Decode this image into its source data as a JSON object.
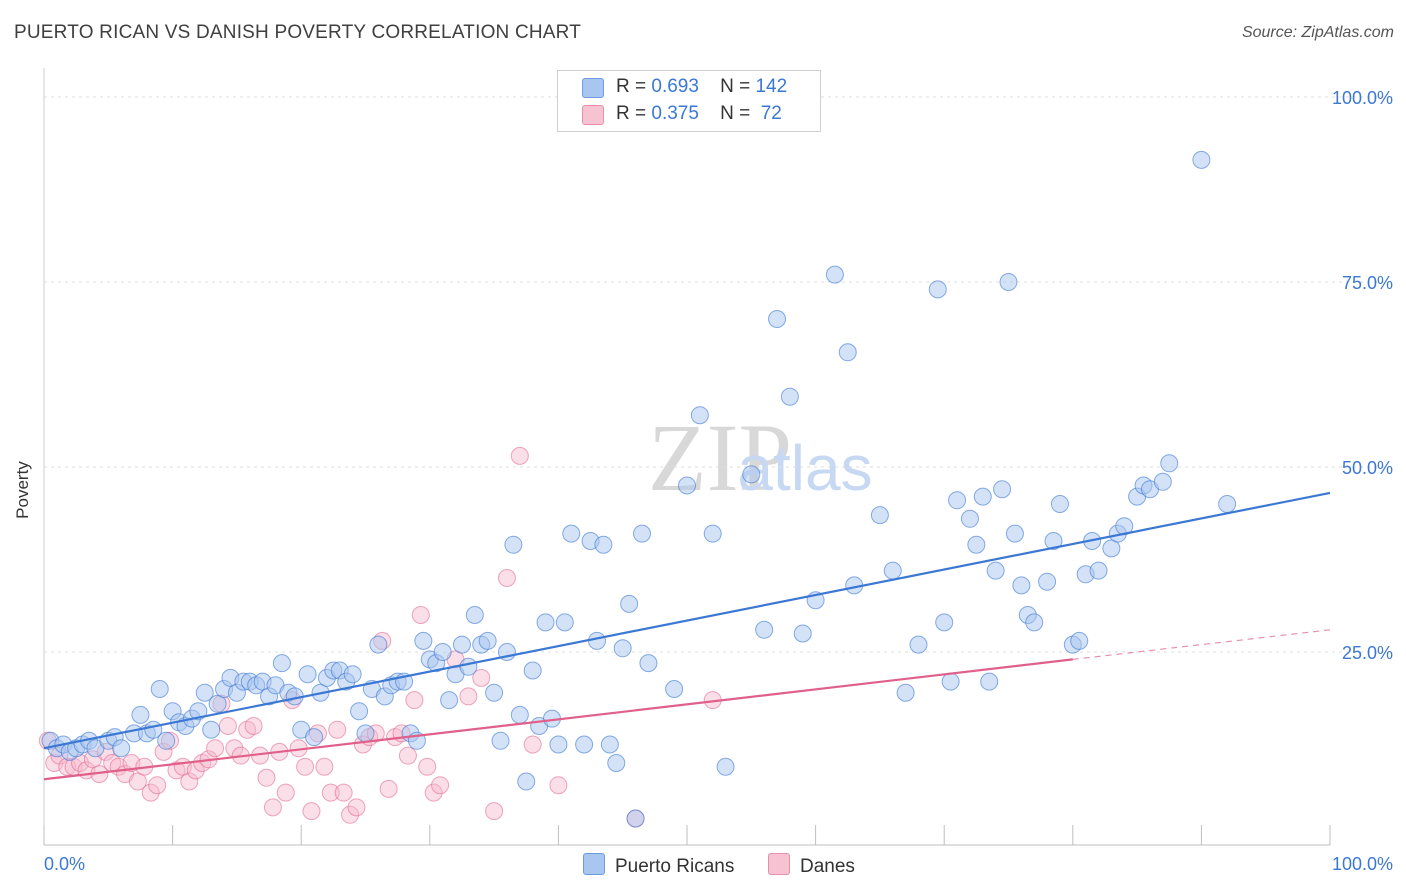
{
  "title": "PUERTO RICAN VS DANISH POVERTY CORRELATION CHART",
  "source": "Source: ZipAtlas.com",
  "watermark": {
    "zip": "ZIP",
    "atlas": "atlas"
  },
  "legend": {
    "rows": [
      {
        "r_label": "R =",
        "r_value": "0.693",
        "n_label": "N =",
        "n_value": "142"
      },
      {
        "r_label": "R =",
        "r_value": "0.375",
        "n_label": "N =",
        "n_value": " 72"
      }
    ]
  },
  "bottom_legend": {
    "series1": "Puerto Ricans",
    "series2": "Danes"
  },
  "chart_data": {
    "type": "scatter",
    "ylabel": "Poverty",
    "x_ticks": [
      "0.0%",
      "100.0%"
    ],
    "y_ticks": [
      "25.0%",
      "50.0%",
      "75.0%",
      "100.0%"
    ],
    "xlim": [
      0,
      100
    ],
    "ylim": [
      0,
      100
    ],
    "grid": true,
    "colors": {
      "blue": "#3b78d4",
      "blue_fill": "#a9c6f0",
      "pink": "#e0608a",
      "pink_fill": "#f6b7cb",
      "tick_blue": "#3b78d4"
    },
    "series": [
      {
        "name": "Puerto Ricans",
        "trend": {
          "x0": 0,
          "y0": 12.0,
          "x1": 100,
          "y1": 46.5
        },
        "points": [
          [
            0.5,
            13
          ],
          [
            1,
            12
          ],
          [
            1.5,
            12.5
          ],
          [
            2,
            11.5
          ],
          [
            2.5,
            12
          ],
          [
            3,
            12.5
          ],
          [
            3.5,
            13
          ],
          [
            4,
            12
          ],
          [
            5,
            13
          ],
          [
            5.5,
            13.5
          ],
          [
            6,
            12
          ],
          [
            7,
            14
          ],
          [
            7.5,
            16.5
          ],
          [
            8,
            14
          ],
          [
            8.5,
            14.5
          ],
          [
            9,
            20
          ],
          [
            9.5,
            13
          ],
          [
            10,
            17
          ],
          [
            10.5,
            15.5
          ],
          [
            11,
            15
          ],
          [
            11.5,
            16
          ],
          [
            12,
            17
          ],
          [
            12.5,
            19.5
          ],
          [
            13,
            14.5
          ],
          [
            13.5,
            18
          ],
          [
            14,
            20
          ],
          [
            14.5,
            21.5
          ],
          [
            15,
            19.5
          ],
          [
            15.5,
            21
          ],
          [
            16,
            21
          ],
          [
            16.5,
            20.5
          ],
          [
            17,
            21
          ],
          [
            17.5,
            19
          ],
          [
            18,
            20.5
          ],
          [
            18.5,
            23.5
          ],
          [
            19,
            19.5
          ],
          [
            19.5,
            19
          ],
          [
            20,
            14.5
          ],
          [
            20.5,
            22
          ],
          [
            21,
            13.5
          ],
          [
            21.5,
            19.5
          ],
          [
            22,
            21.5
          ],
          [
            22.5,
            22.5
          ],
          [
            23,
            22.5
          ],
          [
            23.5,
            21
          ],
          [
            24,
            22
          ],
          [
            24.5,
            17
          ],
          [
            25,
            14
          ],
          [
            25.5,
            20
          ],
          [
            26,
            26
          ],
          [
            26.5,
            19
          ],
          [
            27,
            20.5
          ],
          [
            27.5,
            21
          ],
          [
            28,
            21
          ],
          [
            28.5,
            14
          ],
          [
            29,
            13
          ],
          [
            29.5,
            26.5
          ],
          [
            30,
            24
          ],
          [
            30.5,
            23.5
          ],
          [
            31,
            25
          ],
          [
            31.5,
            18.5
          ],
          [
            32,
            22
          ],
          [
            32.5,
            26
          ],
          [
            33,
            23
          ],
          [
            33.5,
            30
          ],
          [
            34,
            26
          ],
          [
            34.5,
            26.5
          ],
          [
            35,
            19.5
          ],
          [
            35.5,
            13
          ],
          [
            36,
            25
          ],
          [
            36.5,
            39.5
          ],
          [
            37,
            16.5
          ],
          [
            37.5,
            7.5
          ],
          [
            38,
            22.5
          ],
          [
            38.5,
            15
          ],
          [
            39,
            29
          ],
          [
            39.5,
            16
          ],
          [
            40,
            12.5
          ],
          [
            40.5,
            29
          ],
          [
            41,
            41
          ],
          [
            42,
            12.5
          ],
          [
            42.5,
            40
          ],
          [
            43,
            26.5
          ],
          [
            43.5,
            39.5
          ],
          [
            44,
            12.5
          ],
          [
            44.5,
            10
          ],
          [
            45,
            25.5
          ],
          [
            45.5,
            31.5
          ],
          [
            46,
            2.5
          ],
          [
            46.5,
            41
          ],
          [
            47,
            23.5
          ],
          [
            49,
            20
          ],
          [
            50,
            47.5
          ],
          [
            51,
            57
          ],
          [
            52,
            41
          ],
          [
            53,
            9.5
          ],
          [
            55,
            49
          ],
          [
            56,
            28
          ],
          [
            57,
            70
          ],
          [
            58,
            59.5
          ],
          [
            59,
            27.5
          ],
          [
            60,
            32
          ],
          [
            61.5,
            76
          ],
          [
            62.5,
            65.5
          ],
          [
            63,
            34
          ],
          [
            65,
            43.5
          ],
          [
            66,
            36
          ],
          [
            67,
            19.5
          ],
          [
            68,
            26
          ],
          [
            69.5,
            74
          ],
          [
            70,
            29
          ],
          [
            70.5,
            21
          ],
          [
            71,
            45.5
          ],
          [
            72,
            43
          ],
          [
            72.5,
            39.5
          ],
          [
            73,
            46
          ],
          [
            73.5,
            21
          ],
          [
            74,
            36
          ],
          [
            74.5,
            47
          ],
          [
            75,
            75
          ],
          [
            75.5,
            41
          ],
          [
            76,
            34
          ],
          [
            76.5,
            30
          ],
          [
            77,
            29
          ],
          [
            78,
            34.5
          ],
          [
            78.5,
            40
          ],
          [
            79,
            45
          ],
          [
            80,
            26
          ],
          [
            80.5,
            26.5
          ],
          [
            81,
            35.5
          ],
          [
            81.5,
            40
          ],
          [
            82,
            36
          ],
          [
            83,
            39
          ],
          [
            83.5,
            41
          ],
          [
            84,
            42
          ],
          [
            85,
            46
          ],
          [
            85.5,
            47.5
          ],
          [
            86,
            47
          ],
          [
            87,
            48
          ],
          [
            87.5,
            50.5
          ],
          [
            90,
            91.5
          ],
          [
            92,
            45
          ]
        ]
      },
      {
        "name": "Danes",
        "trend": {
          "x0": 0,
          "y0": 7.8,
          "x1": 80,
          "y1": 24.0,
          "dash_to": {
            "x": 100,
            "y": 28.0
          }
        },
        "points": [
          [
            0.3,
            13
          ],
          [
            0.8,
            10
          ],
          [
            1.2,
            11
          ],
          [
            1.8,
            9.5
          ],
          [
            2.3,
            9.5
          ],
          [
            2.8,
            10
          ],
          [
            3.3,
            9
          ],
          [
            3.8,
            10.5
          ],
          [
            4.3,
            8.5
          ],
          [
            4.8,
            11.5
          ],
          [
            5.3,
            10
          ],
          [
            5.8,
            9.5
          ],
          [
            6.3,
            8.5
          ],
          [
            6.8,
            10
          ],
          [
            7.3,
            7.5
          ],
          [
            7.8,
            9.5
          ],
          [
            8.3,
            6
          ],
          [
            8.8,
            7
          ],
          [
            9.3,
            11.5
          ],
          [
            9.8,
            13
          ],
          [
            10.3,
            9
          ],
          [
            10.8,
            9.5
          ],
          [
            11.3,
            7.5
          ],
          [
            11.8,
            9
          ],
          [
            12.3,
            10
          ],
          [
            12.8,
            10.5
          ],
          [
            13.3,
            12
          ],
          [
            13.8,
            18
          ],
          [
            14.3,
            15
          ],
          [
            14.8,
            12
          ],
          [
            15.3,
            11
          ],
          [
            15.8,
            14.5
          ],
          [
            16.3,
            15
          ],
          [
            16.8,
            11
          ],
          [
            17.3,
            8
          ],
          [
            17.8,
            4
          ],
          [
            18.3,
            11.5
          ],
          [
            18.8,
            6
          ],
          [
            19.3,
            18.5
          ],
          [
            19.8,
            12
          ],
          [
            20.3,
            9.5
          ],
          [
            20.8,
            3.5
          ],
          [
            21.3,
            14
          ],
          [
            21.8,
            9.5
          ],
          [
            22.3,
            6
          ],
          [
            22.8,
            14.5
          ],
          [
            23.3,
            6
          ],
          [
            23.8,
            3
          ],
          [
            24.3,
            4
          ],
          [
            24.8,
            12.5
          ],
          [
            25.3,
            13.5
          ],
          [
            25.8,
            14
          ],
          [
            26.3,
            26.5
          ],
          [
            26.8,
            6.5
          ],
          [
            27.3,
            13.5
          ],
          [
            27.8,
            14
          ],
          [
            28.3,
            11
          ],
          [
            28.8,
            18.5
          ],
          [
            29.3,
            30
          ],
          [
            29.8,
            9.5
          ],
          [
            30.3,
            6
          ],
          [
            30.8,
            7
          ],
          [
            32,
            24
          ],
          [
            33,
            19
          ],
          [
            34,
            21.5
          ],
          [
            35,
            3.5
          ],
          [
            36,
            35
          ],
          [
            37,
            51.5
          ],
          [
            38,
            12.5
          ],
          [
            40,
            7
          ],
          [
            46,
            2.5
          ],
          [
            52,
            18.5
          ]
        ]
      }
    ]
  }
}
